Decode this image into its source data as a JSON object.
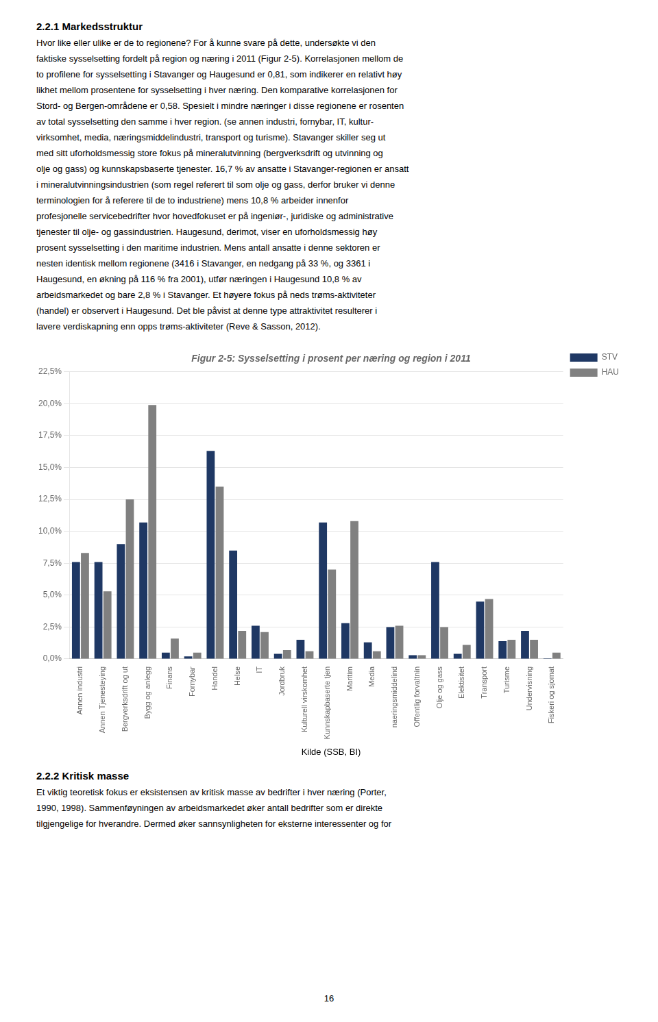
{
  "section_header": "2.2.1 Markedsstruktur",
  "para1": "Hvor like eller ulike er de to regionene? For å kunne svare på dette, undersøkte vi den\nfaktiske sysselsetting fordelt på region og næring i 2011 (Figur 2-5). Korrelasjonen mellom de\nto profilene for sysselsetting i Stavanger og Haugesund er 0,81, som indikerer en relativt høy\nlikhet mellom prosentene for sysselsetting i hver næring. Den komparative korrelasjonen for\nStord- og Bergen-områdene er 0,58. Spesielt i mindre næringer i disse regionene er rosenten\nav total sysselsetting den samme i hver region. (se annen industri, fornybar, IT, kultur-\nvirksomhet, media, næringsmiddelindustri, transport og turisme). Stavanger skiller seg ut\nmed sitt uforholdsmessig store fokus på mineralutvinning (bergverksdrift og utvinning og\nolje og gass) og kunnskapsbaserte tjenester. 16,7 % av ansatte i Stavanger-regionen er ansatt\ni mineralutvinningsindustrien (som regel referert til som olje og gass, derfor bruker vi denne\nterminologien for å referere til de to industriene) mens 10,8 % arbeider innenfor\nprofesjonelle servicebedrifter hvor hovedfokuset er på ingeniør-, juridiske og administrative\ntjenester til olje- og gassindustrien. Haugesund, derimot, viser en uforholdsmessig høy\nprosent sysselsetting i den maritime industrien. Mens antall ansatte i denne sektoren er\nnesten identisk mellom regionene (3416 i Stavanger, en nedgang på 33 %, og 3361 i\nHaugesund, en økning på 116 % fra 2001), utfør næringen i Haugesund 10,8 % av\narbeidsmarkedet og bare 2,8 % i Stavanger. Et høyere fokus på neds trøms-aktiviteter\n(handel) er observert i Haugesund. Det ble påvist at denne type attraktivitet resulterer i\nlavere verdiskapning enn opps trøms-aktiviteter (Reve & Sasson, 2012).",
  "section_header2": "2.2.2 Kritisk masse",
  "para2": "Et viktig teoretisk fokus er eksistensen av kritisk masse av bedrifter i hver næring (Porter,\n1990, 1998). Sammenføyningen av arbeidsmarkedet øker antall bedrifter som er direkte\ntilgjengelige for hverandre. Dermed øker sannsynligheten for eksterne interessenter og for",
  "page_num": "16",
  "chart_data": {
    "type": "bar",
    "title": "Figur 2-5: Sysselsetting i prosent per næring og region i 2011",
    "annotations": [
      "Kilde (SSB, BI)"
    ],
    "categories": [
      "Annen industri",
      "Annen Tjenesteying",
      "Bergverksdrift og ut",
      "Bygg og anlegg",
      "Finans",
      "Fornybar",
      "Handel",
      "Helse",
      "IT",
      "Jordbruk",
      "Kulturell virskomhet",
      "Kunnskapbaserte tjen",
      "Maritim",
      "Media",
      "naeringsmiddelind",
      "Offentlig forvaltnin",
      "Olje og gass",
      "Elektisitet",
      "Transport",
      "Turisme",
      "Undervisning",
      "Fiskeri og sjomat"
    ],
    "series": [
      {
        "name": "STV",
        "color": "#1F3864",
        "values": [
          7.6,
          7.6,
          9.0,
          10.7,
          0.5,
          0.2,
          16.3,
          8.5,
          2.6,
          0.4,
          1.5,
          10.7,
          2.8,
          1.3,
          2.5,
          0.3,
          7.6,
          0.4,
          4.5,
          1.4,
          2.2,
          0.05
        ]
      },
      {
        "name": "HAU",
        "color": "#808080",
        "values": [
          8.3,
          5.3,
          12.5,
          19.9,
          1.6,
          0.5,
          13.5,
          2.2,
          2.1,
          0.7,
          0.6,
          7.0,
          10.8,
          0.6,
          2.6,
          0.3,
          2.5,
          1.1,
          4.7,
          1.5,
          1.5,
          0.5
        ]
      }
    ],
    "ylim": [
      0,
      22.5
    ],
    "yticks": [
      {
        "value": 0.0,
        "label": "0,0%"
      },
      {
        "value": 2.5,
        "label": "2,5%"
      },
      {
        "value": 5.0,
        "label": "5,0%"
      },
      {
        "value": 7.5,
        "label": "7,5%"
      },
      {
        "value": 10.0,
        "label": "10,0%"
      },
      {
        "value": 12.5,
        "label": "12,5%"
      },
      {
        "value": 15.0,
        "label": "15,0%"
      },
      {
        "value": 17.5,
        "label": "17,5%"
      },
      {
        "value": 20.0,
        "label": "20,0%"
      },
      {
        "value": 22.5,
        "label": "22,5%"
      }
    ],
    "grid": true,
    "legend": "upper right"
  }
}
